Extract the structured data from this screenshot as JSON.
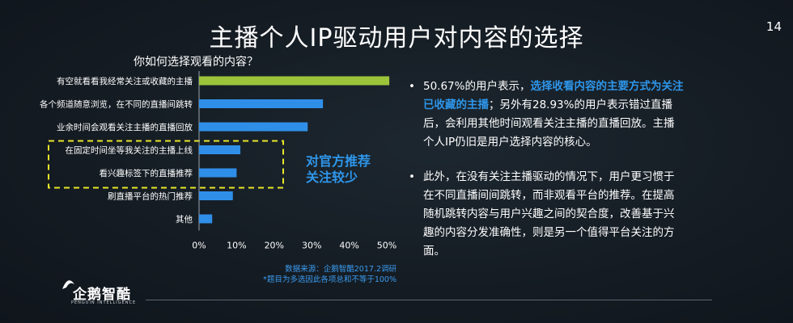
{
  "page": {
    "title": "主播个人IP驱动用户对内容的选择",
    "page_number": "14",
    "accent_color": "#1b8ee6"
  },
  "chart_data": {
    "type": "bar",
    "orientation": "horizontal",
    "title": "你如何选择观看的内容？",
    "categories": [
      "有空就看看我经常关注或收藏的主播",
      "各个频道随意浏览，在不同的直播间跳转",
      "业余时间会观看关注主播的直播回放",
      "在固定时间坐等我关注的主播上线",
      "看兴趣标签下的直播推荐",
      "刷直播平台的热门推荐",
      "其他"
    ],
    "values": [
      50.67,
      33,
      28.93,
      11,
      10,
      9,
      3.5
    ],
    "bar_colors": [
      "#9cc43b",
      "#2f8fe8",
      "#2f8fe8",
      "#2f8fe8",
      "#2f8fe8",
      "#2f8fe8",
      "#2f8fe8"
    ],
    "xlim": [
      0,
      50
    ],
    "tick_labels": [
      "0%",
      "10%",
      "20%",
      "30%",
      "40%",
      "50%"
    ],
    "highlight_box": [
      3,
      4
    ],
    "annotation": [
      "对官方推荐",
      "关注较少"
    ],
    "source_note": [
      "数据来源：企鹅智酷2017.2调研",
      "*题目为多选因此各项总和不等于100%"
    ]
  },
  "bullets": [
    {
      "dot": "•",
      "pre": "50.67%的用户表示，",
      "highlight": "选择收看内容的主要方式为关注已收藏的主播",
      "post": "；另外有28.93%的用户表示错过直播后，会利用其他时间观看关注主播的直播回放。主播个人IP仍旧是用户选择内容的核心。"
    },
    {
      "dot": "•",
      "text": "此外，在没有关注主播驱动的情况下，用户更习惯于在不同直播间间跳转，而非观看平台的推荐。在提高随机跳转内容与用户兴趣之间的契合度，改善基于兴趣的内容分发准确性，则是另一个值得平台关注的方面。"
    }
  ],
  "logo": {
    "name": "企鹅智酷",
    "sub": "PENGUIN INTELLIGENCE"
  }
}
